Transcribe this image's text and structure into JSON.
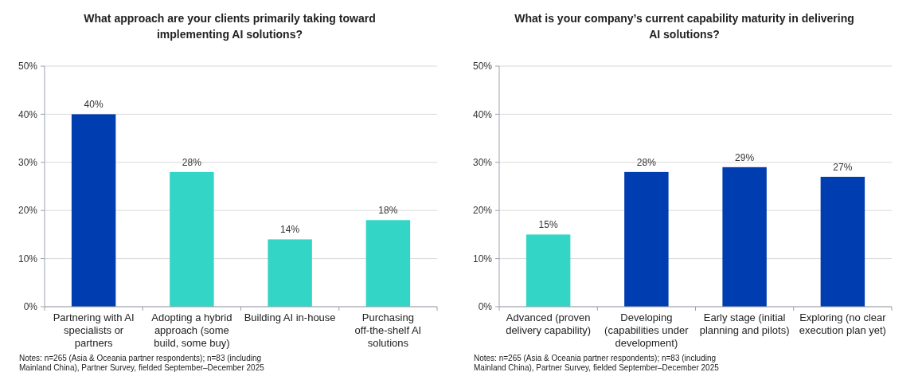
{
  "chart_data": [
    {
      "type": "bar",
      "title": "What approach are your clients primarily taking toward implementing AI solutions?",
      "categories": [
        "Partnering with AI specialists or partners",
        "Adopting a hybrid approach (some build, some buy)",
        "Building AI in-house",
        "Purchasing off-the-shelf AI solutions"
      ],
      "values": [
        40,
        28,
        14,
        18
      ],
      "colors": [
        "#003db0",
        "#33d6c6",
        "#33d6c6",
        "#33d6c6"
      ],
      "value_labels": [
        "40%",
        "28%",
        "14%",
        "18%"
      ],
      "ylim": [
        0,
        50
      ],
      "yticks": [
        {
          "value": 0,
          "label": "0%"
        },
        {
          "value": 10,
          "label": "10%"
        },
        {
          "value": 20,
          "label": "20%"
        },
        {
          "value": 30,
          "label": "30%"
        },
        {
          "value": 40,
          "label": "40%"
        },
        {
          "value": 50,
          "label": "50%"
        }
      ],
      "grid": "y",
      "annotations": [
        "Notes: n=265 (Asia & Oceania partner respondents); n=83 (including Mainland China), Partner Survey, fielded September–December 2025"
      ]
    },
    {
      "type": "bar",
      "title": "What is your company’s current capability maturity in delivering AI solutions?",
      "categories": [
        "Advanced (proven delivery capability)",
        "Developing (capabilities under development)",
        "Early stage (initial planning and pilots)",
        "Exploring (no clear execution plan yet)"
      ],
      "values": [
        15,
        28,
        29,
        27
      ],
      "colors": [
        "#33d6c6",
        "#003db0",
        "#003db0",
        "#003db0"
      ],
      "value_labels": [
        "15%",
        "28%",
        "29%",
        "27%"
      ],
      "ylim": [
        0,
        50
      ],
      "yticks": [
        {
          "value": 0,
          "label": "0%"
        },
        {
          "value": 10,
          "label": "10%"
        },
        {
          "value": 20,
          "label": "20%"
        },
        {
          "value": 30,
          "label": "30%"
        },
        {
          "value": 40,
          "label": "40%"
        },
        {
          "value": 50,
          "label": "50%"
        }
      ],
      "grid": "y",
      "annotations": [
        "Notes: n=265 (Asia & Oceania partner respondents); n=83 (including Mainland China), Partner Survey, fielded September–December 2025"
      ]
    }
  ]
}
